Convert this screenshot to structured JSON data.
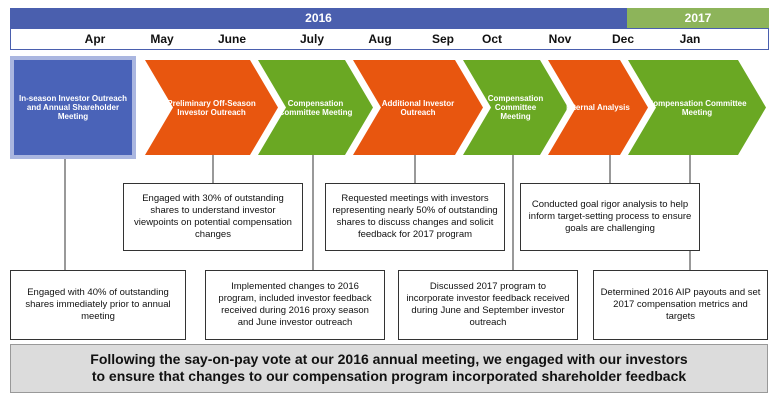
{
  "header": {
    "years": [
      "2016",
      "2017"
    ],
    "months": [
      "Apr",
      "May",
      "June",
      "July",
      "Aug",
      "Sep",
      "Oct",
      "Nov",
      "Dec",
      "Jan"
    ]
  },
  "first_stage": "In-season Investor Outreach and Annual Shareholder Meeting",
  "stages": [
    {
      "label": "Preliminary Off-Season Investor Outreach",
      "color": "orange"
    },
    {
      "label": "Compensation Committee Meeting",
      "color": "green"
    },
    {
      "label": "Additional Investor Outreach",
      "color": "orange"
    },
    {
      "label": "Compensation Committee Meeting",
      "color": "green"
    },
    {
      "label": "Internal Analysis",
      "color": "orange"
    },
    {
      "label": "Compensation Committee Meeting",
      "color": "green"
    }
  ],
  "upper_notes": [
    "Engaged with 30% of outstanding shares to understand investor viewpoints on potential compensation changes",
    "Requested meetings with investors representing nearly 50% of outstanding shares to discuss changes and solicit feedback for 2017 program",
    "Conducted goal rigor analysis to help inform target-setting process to ensure goals are challenging"
  ],
  "lower_notes": [
    "Engaged with 40% of outstanding shares immediately prior to annual meeting",
    "Implemented changes to 2016 program, included investor feedback received during 2016 proxy season and June investor outreach",
    "Discussed 2017 program to incorporate investor feedback received during June and September investor outreach",
    "Determined 2016 AIP payouts and set 2017 compensation metrics and targets"
  ],
  "footer": [
    "Following the say-on-pay vote at our 2016 annual meeting, we engaged with our investors",
    "to ensure that changes to our compensation program incorporated shareholder feedback"
  ]
}
